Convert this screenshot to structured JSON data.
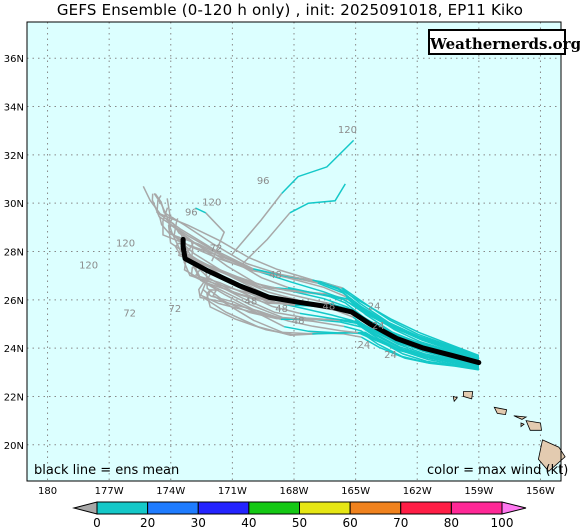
{
  "title": "GEFS Ensemble (0-120 h only) , init: 2025091018, EP11 Kiko",
  "watermark": "Weathernerds.org",
  "notes": {
    "left": "black line = ens mean",
    "right": "color = max wind (kt)"
  },
  "map": {
    "lon_range": [
      179,
      -155
    ],
    "lat_range": [
      18.5,
      37.5
    ],
    "lat_ticks": [
      {
        "value": 36,
        "label": "36N"
      },
      {
        "value": 34,
        "label": "34N"
      },
      {
        "value": 32,
        "label": "32N"
      },
      {
        "value": 30,
        "label": "30N"
      },
      {
        "value": 28,
        "label": "28N"
      },
      {
        "value": 26,
        "label": "26N"
      },
      {
        "value": 24,
        "label": "24N"
      },
      {
        "value": 22,
        "label": "22N"
      },
      {
        "value": 20,
        "label": "20N"
      }
    ],
    "lon_ticks": [
      {
        "value": 180,
        "label": "180"
      },
      {
        "value": -177,
        "label": "177W"
      },
      {
        "value": -174,
        "label": "174W"
      },
      {
        "value": -171,
        "label": "171W"
      },
      {
        "value": -168,
        "label": "168W"
      },
      {
        "value": -165,
        "label": "165W"
      },
      {
        "value": -162,
        "label": "162W"
      },
      {
        "value": -159,
        "label": "159W"
      },
      {
        "value": -156,
        "label": "156W"
      }
    ],
    "background_color": "#dcffff",
    "land_color": "#e3cbb0"
  },
  "colorbar": {
    "labels": [
      "0",
      "20",
      "30",
      "40",
      "50",
      "60",
      "70",
      "80",
      "100"
    ],
    "colors": [
      "#a8a8a8",
      "#14c8c8",
      "#1f7cff",
      "#2424ff",
      "#14c814",
      "#e6e614",
      "#f0821e",
      "#ff1e46",
      "#ff2896",
      "#ff78f0"
    ]
  },
  "ensemble_mean": [
    [
      -159,
      23.4
    ],
    [
      -160.3,
      23.7
    ],
    [
      -161.7,
      24.0
    ],
    [
      -163.0,
      24.4
    ],
    [
      -164.3,
      25.0
    ],
    [
      -165.2,
      25.5
    ],
    [
      -166.2,
      25.7
    ],
    [
      -167.8,
      25.9
    ],
    [
      -169.2,
      26.1
    ],
    [
      -170.7,
      26.6
    ],
    [
      -172.2,
      27.2
    ],
    [
      -173.3,
      27.7
    ],
    [
      -173.4,
      28.2
    ],
    [
      -173.4,
      28.5
    ]
  ],
  "hour_labels": [
    {
      "text": "120",
      "lon": -165.4,
      "lat": 32.9
    },
    {
      "text": "96",
      "lon": -169.5,
      "lat": 30.8
    },
    {
      "text": "96",
      "lon": -173.0,
      "lat": 29.5
    },
    {
      "text": "120",
      "lon": -172.0,
      "lat": 29.9
    },
    {
      "text": "120",
      "lon": -176.2,
      "lat": 28.2
    },
    {
      "text": "120",
      "lon": -178.0,
      "lat": 27.3
    },
    {
      "text": "72",
      "lon": -171.8,
      "lat": 28.0
    },
    {
      "text": "48",
      "lon": -168.9,
      "lat": 26.9
    },
    {
      "text": "48",
      "lon": -170.1,
      "lat": 25.8
    },
    {
      "text": "48",
      "lon": -168.6,
      "lat": 25.5
    },
    {
      "text": "48",
      "lon": -166.3,
      "lat": 25.6
    },
    {
      "text": "48",
      "lon": -167.8,
      "lat": 25.0
    },
    {
      "text": "24",
      "lon": -164.1,
      "lat": 25.6
    },
    {
      "text": "24",
      "lon": -163.9,
      "lat": 24.8
    },
    {
      "text": "24",
      "lon": -164.6,
      "lat": 24.0
    },
    {
      "text": "24",
      "lon": -163.3,
      "lat": 23.6
    },
    {
      "text": "72",
      "lon": -176.0,
      "lat": 25.3
    },
    {
      "text": "72",
      "lon": -173.8,
      "lat": 25.5
    }
  ]
}
